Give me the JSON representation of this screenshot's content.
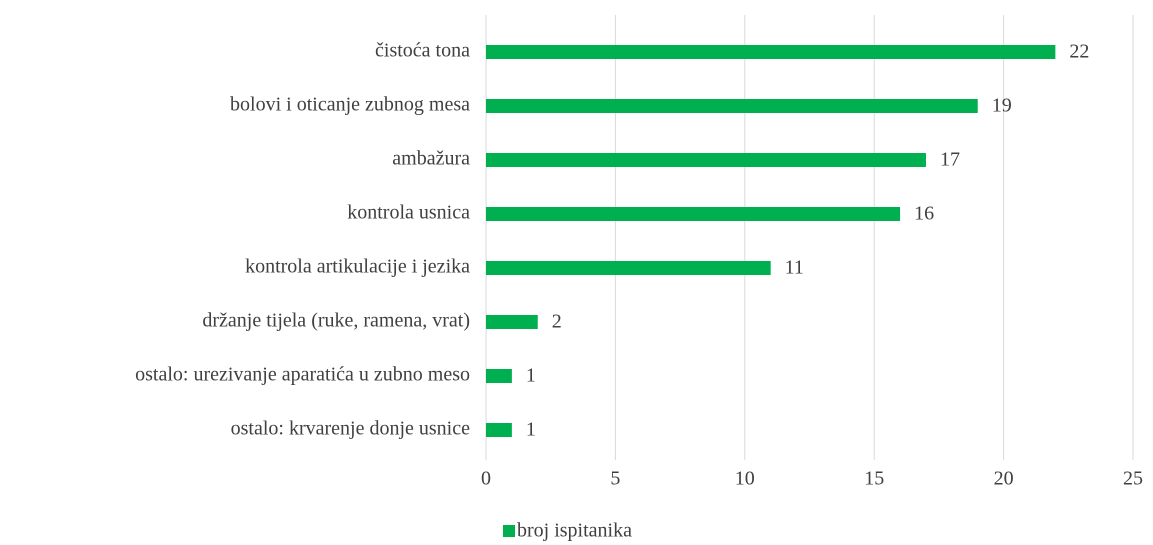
{
  "chart_data": {
    "type": "bar",
    "orientation": "horizontal",
    "categories": [
      "čistoća tona",
      "bolovi i oticanje zubnog mesa",
      "ambažura",
      "kontrola usnica",
      "kontrola artikulacije i jezika",
      "držanje tijela (ruke, ramena, vrat)",
      "ostalo: urezivanje aparatića u zubno meso",
      "ostalo: krvarenje donje usnice"
    ],
    "series": [
      {
        "name": "broj ispitanika",
        "color": "#00b050",
        "values": [
          22,
          19,
          17,
          16,
          11,
          2,
          1,
          1
        ]
      }
    ],
    "xlim": [
      0,
      25
    ],
    "xticks": [
      0,
      5,
      10,
      15,
      20,
      25
    ],
    "grid": true,
    "legend": "bottom",
    "data_labels": true
  }
}
